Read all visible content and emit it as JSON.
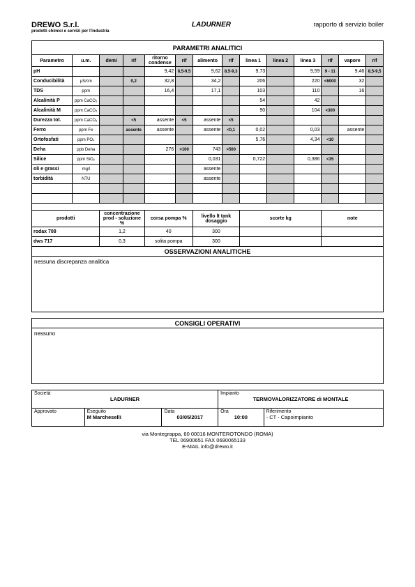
{
  "header": {
    "company": "DREWO S.r.l.",
    "subtitle": "prodotti chimici e servizi per l'industria",
    "center": "LADURNER",
    "right": "rapporto di servizio boiler"
  },
  "section1_title": "PARAMETRI ANALITICI",
  "columns": {
    "parametro": "Parametro",
    "um": "u.m.",
    "demi": "demi",
    "rif1": "rif",
    "ritorno": "ritorno condense",
    "rif2": "rif",
    "alimento": "alimento",
    "rif3": "rif",
    "linea1": "linea 1",
    "linea2": "linea 2",
    "linea3": "linea 3",
    "rif4": "rif",
    "vapore": "vapore",
    "rif5": "rif"
  },
  "rows": [
    {
      "p": "pH",
      "u": "",
      "demi": "",
      "r1": "",
      "rit": "9,42",
      "r2": "8,5-9,5",
      "ali": "9,62",
      "r3": "8,5-9,3",
      "l1": "9,73",
      "l2": "",
      "l3": "9,59",
      "r4": "9 - 11",
      "vap": "9,46",
      "r5": "8,5-9,5"
    },
    {
      "p": "Conducibilità",
      "u": "µS/cm",
      "demi": "",
      "r1": "0,2",
      "rit": "32,8",
      "r2": "",
      "ali": "34,2",
      "r3": "",
      "l1": "206",
      "l2": "",
      "l3": "220",
      "r4": "<6000",
      "vap": "32",
      "r5": ""
    },
    {
      "p": "TDS",
      "u": "ppm",
      "demi": "",
      "r1": "",
      "rit": "16,4",
      "r2": "",
      "ali": "17,1",
      "r3": "",
      "l1": "103",
      "l2": "",
      "l3": "110",
      "r4": "",
      "vap": "16",
      "r5": ""
    },
    {
      "p": "Alcalinità P",
      "u": "ppm CaCO₃",
      "demi": "",
      "r1": "",
      "rit": "",
      "r2": "",
      "ali": "",
      "r3": "",
      "l1": "54",
      "l2": "",
      "l3": "42",
      "r4": "",
      "vap": "",
      "r5": ""
    },
    {
      "p": "Alcalinità M",
      "u": "ppm CaCO₃",
      "demi": "",
      "r1": "",
      "rit": "",
      "r2": "",
      "ali": "",
      "r3": "",
      "l1": "90",
      "l2": "",
      "l3": "104",
      "r4": "<300",
      "vap": "",
      "r5": ""
    },
    {
      "p": "Durezza tot.",
      "u": "ppm CaCO₃",
      "demi": "",
      "r1": "<5",
      "rit": "assente",
      "r2": "<5",
      "ali": "assente",
      "r3": "<5",
      "l1": "",
      "l2": "",
      "l3": "",
      "r4": "",
      "vap": "",
      "r5": ""
    },
    {
      "p": "Ferro",
      "u": "ppm Fe",
      "demi": "",
      "r1": "assente",
      "rit": "assente",
      "r2": "",
      "ali": "assente",
      "r3": "<0,1",
      "l1": "0,02",
      "l2": "",
      "l3": "0,03",
      "r4": "",
      "vap": "assente",
      "r5": ""
    },
    {
      "p": "Ortofosfati",
      "u": "ppm PO₄",
      "demi": "",
      "r1": "",
      "rit": "",
      "r2": "",
      "ali": "",
      "r3": "",
      "l1": "5,76",
      "l2": "",
      "l3": "4,34",
      "r4": "<10",
      "vap": "",
      "r5": ""
    },
    {
      "p": "Deha",
      "u": "ppb Deha",
      "demi": "",
      "r1": "",
      "rit": "276",
      "r2": ">100",
      "ali": "743",
      "r3": ">500",
      "l1": "",
      "l2": "",
      "l3": "",
      "r4": "",
      "vap": "",
      "r5": ""
    },
    {
      "p": "Silice",
      "u": "ppm SiO₂",
      "demi": "",
      "r1": "",
      "rit": "",
      "r2": "",
      "ali": "0,031",
      "r3": "",
      "l1": "0,722",
      "l2": "",
      "l3": "0,386",
      "r4": "<35",
      "vap": "",
      "r5": ""
    },
    {
      "p": "oli e grassi",
      "u": "mg/l",
      "demi": "",
      "r1": "",
      "rit": "",
      "r2": "",
      "ali": "assente",
      "r3": "",
      "l1": "",
      "l2": "",
      "l3": "",
      "r4": "",
      "vap": "",
      "r5": ""
    },
    {
      "p": "torbidità",
      "u": "NTU",
      "demi": "",
      "r1": "",
      "rit": "",
      "r2": "",
      "ali": "assente",
      "r3": "",
      "l1": "",
      "l2": "",
      "l3": "",
      "r4": "",
      "vap": "",
      "r5": ""
    }
  ],
  "products_header": {
    "prodotti": "prodotti",
    "conc": "concentrazione prod - soluzione %",
    "corsa": "corsa pompa  %",
    "livello": "livello lt tank dosaggio",
    "scorte": "scorte kg",
    "note": "note"
  },
  "products": [
    {
      "name": "rodax 708",
      "conc": "1,2",
      "corsa": "40",
      "liv": "300",
      "scorte": "",
      "note": ""
    },
    {
      "name": "dws 717",
      "conc": "0,3",
      "corsa": "solita pompa",
      "liv": "300",
      "scorte": "",
      "note": ""
    }
  ],
  "obs_title": "OSSERVAZIONI ANALITICHE",
  "obs_text": "nessuna discrepanza analitica",
  "cons_title": "CONSIGLI OPERATIVI",
  "cons_text": "nessuno",
  "footer": {
    "societa_label": "Società",
    "societa_val": "LADURNER",
    "impianto_label": "Impianto",
    "impianto_val": "TERMOVALORIZZATORE di MONTALE",
    "approvato_label": "Approvato",
    "eseguito_label": "Eseguito",
    "eseguito_val": "M Marcheselli",
    "data_label": "Data",
    "data_val": "03/05/2017",
    "ora_label": "Ora",
    "ora_val": "10:00",
    "rif_label": "Riferimento",
    "rif_val": " - CT - Capoimpianto"
  },
  "contact": {
    "line1": "via Montegrappa, 60 00016 MONTEROTONDO (ROMA)",
    "line2": "TEL 06900651 FAX 0690065133",
    "line3": "E-MAIL info@drewo.it"
  }
}
